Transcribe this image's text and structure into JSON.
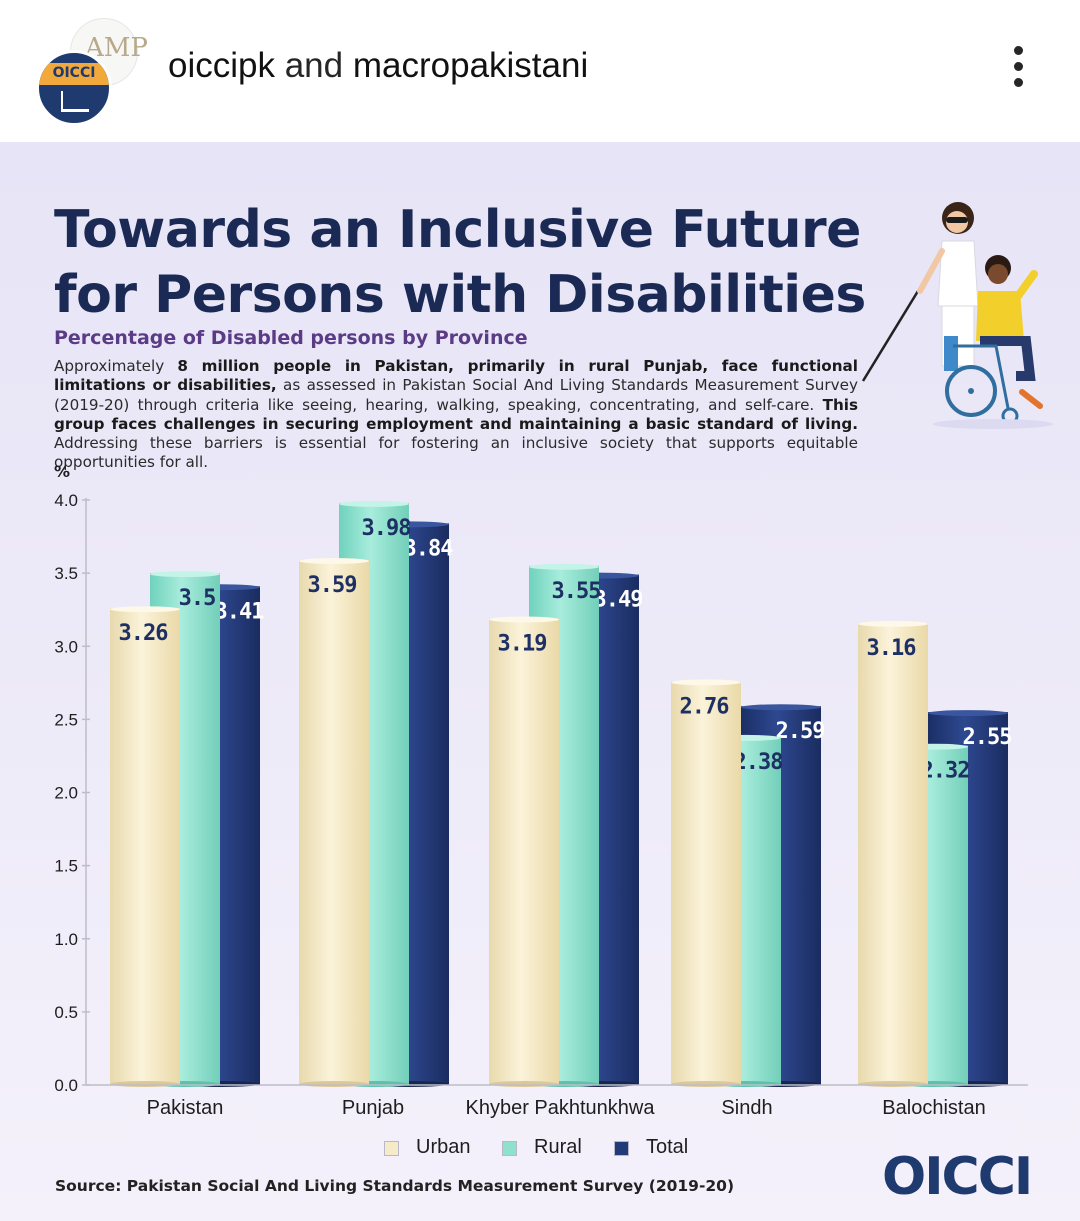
{
  "header": {
    "account_primary": "oiccipk",
    "account_joiner": "and",
    "account_secondary": "macropakistani",
    "avatar_back_text": "AMP",
    "avatar_front_text": "OICCI",
    "menu_icon": "more-vertical-icon"
  },
  "post": {
    "title": "Towards an Inclusive Future for Persons with Disabilities",
    "subtitle": "Percentage of Disabled persons by Province",
    "description": {
      "p1": "Approximately ",
      "b1": "8 million people in Pakistan, primarily in rural Punjab, face functional limitations or disabilities,",
      "p2": " as assessed in Pakistan Social And Living Standards Measurement Survey (2019-20) through criteria like seeing, hearing, walking, speaking, concentrating, and self-care. ",
      "b2": "This group faces challenges in securing employment and maintaining a basic standard of living.",
      "p3": " Addressing these barriers is essential for fostering an inclusive society that supports equitable opportunities for all."
    },
    "source": "Source: Pakistan Social And Living Standards Measurement Survey (2019-20)",
    "logo_text": "OICCI"
  },
  "chart_data": {
    "type": "bar",
    "ylabel": "%",
    "ylim": [
      0,
      4.0
    ],
    "yticks": [
      "0.0",
      "0.5",
      "1.0",
      "1.5",
      "2.0",
      "2.5",
      "3.0",
      "3.5",
      "4.0"
    ],
    "categories": [
      "Pakistan",
      "Punjab",
      "Khyber Pakhtunkhwa",
      "Sindh",
      "Balochistan"
    ],
    "series": [
      {
        "name": "Urban",
        "color": "#f6ebc8",
        "values": [
          3.26,
          3.59,
          3.19,
          2.76,
          3.16
        ]
      },
      {
        "name": "Rural",
        "color": "#8fe0cd",
        "values": [
          3.5,
          3.98,
          3.55,
          2.38,
          2.32
        ]
      },
      {
        "name": "Total",
        "color": "#233a78",
        "values": [
          3.41,
          3.84,
          3.49,
          2.59,
          2.55
        ]
      }
    ],
    "legend_position": "bottom",
    "grid": false
  }
}
